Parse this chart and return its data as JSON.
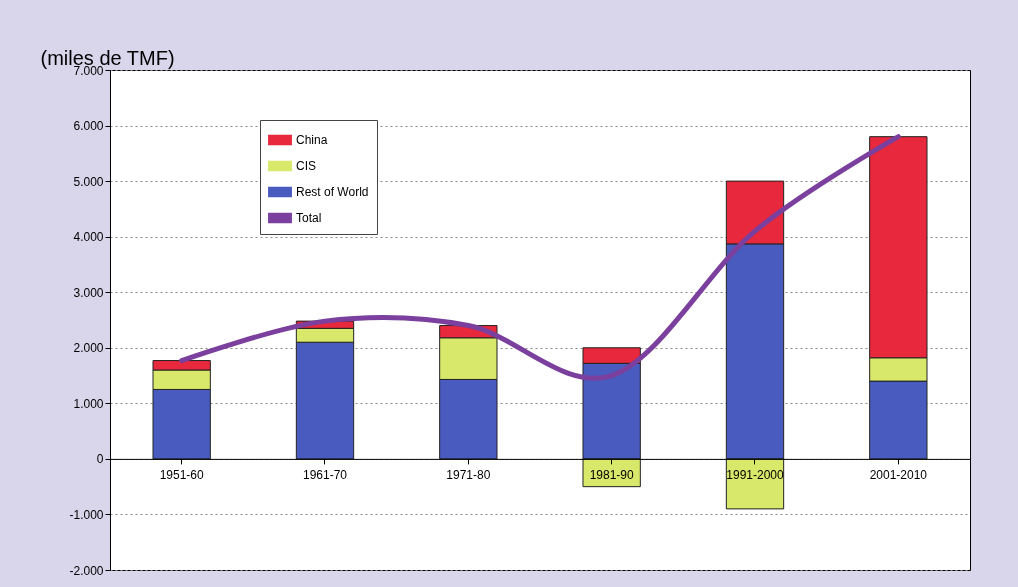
{
  "chart_data": {
    "type": "bar",
    "stacked": true,
    "ylabel": "(miles de TMF)",
    "categories": [
      "1951-60",
      "1961-70",
      "1971-80",
      "1981-90",
      "1991-2000",
      "2001-2010"
    ],
    "series": [
      {
        "name": "Rest of World",
        "color": "#4a5bc0",
        "values": [
          1250,
          2100,
          1430,
          1720,
          3870,
          1400
        ]
      },
      {
        "name": "CIS",
        "color": "#d8e86a",
        "values": [
          350,
          250,
          750,
          -500,
          -900,
          420
        ]
      },
      {
        "name": "China",
        "color": "#e8283c",
        "values": [
          170,
          130,
          220,
          280,
          1130,
          3980
        ]
      },
      {
        "name": "Total",
        "type": "line",
        "color": "#7b3f9e",
        "values": [
          1770,
          2480,
          2400,
          1500,
          4100,
          5800
        ]
      }
    ],
    "ylim": [
      -2000,
      7000
    ],
    "yticks": [
      {
        "value": -2000,
        "label": "-2.000"
      },
      {
        "value": -1000,
        "label": "-1.000"
      },
      0,
      {
        "value": 1000,
        "label": "1.000"
      },
      {
        "value": 2000,
        "label": "2.000"
      },
      {
        "value": 3000,
        "label": "3.000"
      },
      {
        "value": 4000,
        "label": "4.000"
      },
      {
        "value": 5000,
        "label": "5.000"
      },
      {
        "value": 6000,
        "label": "6.000"
      },
      {
        "value": 7000,
        "label": "7.000"
      }
    ],
    "grid": "y",
    "legend": "top left",
    "line_style": "solid"
  }
}
